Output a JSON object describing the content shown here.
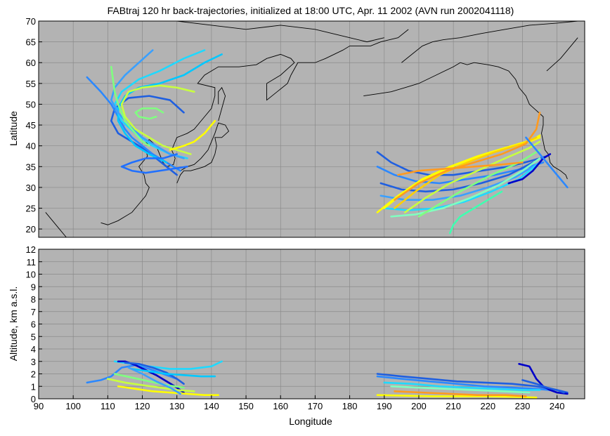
{
  "chart_data": [
    {
      "type": "line",
      "title": "FABtraj 120 hr back-trajectories, initialized at 18:00 UTC, Apr. 11 2002 (AVN run 2002041118)",
      "xlabel": "",
      "ylabel": "Latitude",
      "xlim": [
        90,
        248
      ],
      "ylim": [
        18,
        70
      ],
      "yticks": [
        "20",
        "25",
        "30",
        "35",
        "40",
        "45",
        "50",
        "55",
        "60",
        "65",
        "70"
      ],
      "grid": true,
      "background": "#b3b3b3",
      "series": [
        {
          "color": "#1f5fe0",
          "x": [
            132,
            128,
            122,
            116,
            112,
            111,
            113,
            117,
            121,
            124,
            127,
            130
          ],
          "y": [
            48,
            51,
            52,
            51.5,
            49,
            46,
            43,
            41,
            39,
            37,
            35,
            33
          ]
        },
        {
          "color": "#2b88ff",
          "x": [
            104,
            108,
            111,
            113,
            115,
            117,
            120,
            123,
            125,
            128,
            131
          ],
          "y": [
            56.5,
            53,
            50,
            47,
            44,
            42,
            40,
            38,
            37,
            35.5,
            34
          ]
        },
        {
          "color": "#00c8ff",
          "x": [
            143,
            138,
            132,
            125,
            119,
            115,
            113,
            113,
            115,
            118,
            122,
            127
          ],
          "y": [
            62,
            60,
            57,
            55,
            54,
            52,
            49,
            46,
            43,
            40,
            38,
            36
          ]
        },
        {
          "color": "#1fd9ff",
          "x": [
            138,
            132,
            125,
            119,
            114,
            112,
            114,
            118,
            123,
            128,
            133
          ],
          "y": [
            63,
            61,
            58,
            56,
            53,
            50,
            46,
            43,
            40,
            38,
            37
          ]
        },
        {
          "color": "#3aa0ff",
          "x": [
            123,
            119,
            115,
            112,
            111,
            113,
            116,
            120,
            124,
            128,
            132
          ],
          "y": [
            63,
            60,
            57,
            54,
            51,
            48,
            45,
            42,
            40,
            38,
            37
          ]
        },
        {
          "color": "#80ff80",
          "x": [
            111,
            111.5,
            112,
            113,
            115,
            118,
            120,
            122
          ],
          "y": [
            59,
            56,
            53,
            50,
            46,
            43,
            41,
            40
          ]
        },
        {
          "color": "#c8ff40",
          "x": [
            135,
            130,
            125,
            120,
            116,
            114,
            115,
            118,
            122,
            126,
            130,
            134
          ],
          "y": [
            53,
            54,
            54.5,
            54,
            53,
            50,
            47,
            44,
            42,
            40,
            39,
            38
          ]
        },
        {
          "color": "#ffff00",
          "x": [
            141,
            138,
            135,
            132,
            130,
            128
          ],
          "y": [
            46,
            43,
            41,
            40,
            39.5,
            39
          ]
        },
        {
          "color": "#80ff80",
          "x": [
            126,
            124,
            120,
            118,
            119,
            122,
            124
          ],
          "y": [
            48,
            49,
            49,
            48,
            47,
            46.5,
            47
          ]
        },
        {
          "color": "#2070ff",
          "x": [
            130,
            126,
            121,
            117,
            114,
            117,
            121,
            125,
            129,
            133
          ],
          "y": [
            38,
            37,
            37,
            36,
            35,
            34,
            33.5,
            34,
            34.5,
            35
          ]
        },
        {
          "color": "#1f5fe0",
          "x": [
            188,
            192,
            197,
            203,
            210,
            218,
            226,
            233,
            237
          ],
          "y": [
            38.5,
            36,
            34,
            33,
            33,
            34,
            35,
            36.5,
            37.5
          ]
        },
        {
          "color": "#2b88ff",
          "x": [
            188,
            193,
            199,
            206,
            214,
            222,
            230,
            236
          ],
          "y": [
            35,
            33,
            31.5,
            31,
            32,
            33,
            34.5,
            36
          ]
        },
        {
          "color": "#1f5fe0",
          "x": [
            189,
            195,
            202,
            210,
            218,
            226,
            233
          ],
          "y": [
            31,
            29.5,
            29,
            29.5,
            31,
            33,
            36
          ]
        },
        {
          "color": "#3aa0ff",
          "x": [
            189,
            196,
            204,
            212,
            220,
            228,
            235
          ],
          "y": [
            28,
            27,
            27,
            28,
            30,
            32.5,
            36
          ]
        },
        {
          "color": "#1fd9ff",
          "x": [
            190,
            197,
            205,
            213,
            221,
            229,
            235
          ],
          "y": [
            25,
            24.5,
            25,
            26.5,
            29,
            32,
            36
          ]
        },
        {
          "color": "#80ffc0",
          "x": [
            192,
            199,
            207,
            215,
            223,
            230,
            235
          ],
          "y": [
            23,
            23.5,
            25,
            27.5,
            30.5,
            34,
            37
          ]
        },
        {
          "color": "#ffff00",
          "x": [
            188,
            194,
            201,
            209,
            217,
            225,
            232,
            235
          ],
          "y": [
            24,
            28,
            32,
            35,
            37.5,
            39.5,
            41,
            42
          ]
        },
        {
          "color": "#ffff00",
          "x": [
            190,
            196,
            203,
            211,
            219,
            227,
            233,
            235
          ],
          "y": [
            25,
            29,
            32.5,
            35.5,
            38,
            40,
            41.5,
            42.5
          ]
        },
        {
          "color": "#ffd000",
          "x": [
            193,
            199,
            206,
            214,
            222,
            230,
            234
          ],
          "y": [
            25,
            29,
            33,
            36,
            38.5,
            40.5,
            42
          ]
        },
        {
          "color": "#c8ff40",
          "x": [
            196,
            202,
            209,
            217,
            225,
            232,
            235
          ],
          "y": [
            24,
            27.5,
            31,
            34,
            37,
            39.5,
            41
          ]
        },
        {
          "color": "#80ff80",
          "x": [
            200,
            206,
            213,
            221,
            229,
            235
          ],
          "y": [
            23,
            26,
            29.5,
            33,
            36,
            39
          ]
        },
        {
          "color": "#ff9a20",
          "x": [
            193,
            200,
            208,
            216,
            224,
            231,
            234,
            235
          ],
          "y": [
            27,
            31,
            34,
            36,
            38,
            40.5,
            44,
            48
          ]
        },
        {
          "color": "#ff9a20",
          "x": [
            194,
            200,
            208,
            216,
            224,
            230
          ],
          "y": [
            33,
            34,
            34.5,
            35,
            35.5,
            36
          ]
        },
        {
          "color": "#0000c8",
          "x": [
            226,
            230,
            233,
            235,
            236,
            238
          ],
          "y": [
            31,
            32,
            34,
            36,
            37,
            38
          ]
        },
        {
          "color": "#2b88ff",
          "x": [
            243,
            240,
            238,
            236,
            234,
            231
          ],
          "y": [
            30,
            33,
            35,
            37,
            39,
            42
          ]
        },
        {
          "color": "#40ffb0",
          "x": [
            209,
            210,
            212,
            216,
            220,
            224
          ],
          "y": [
            19,
            21,
            23,
            25,
            27,
            29
          ]
        }
      ]
    },
    {
      "type": "line",
      "title": "",
      "xlabel": "Longitude",
      "ylabel": "Altitude, km a.s.l.",
      "xlim": [
        90,
        248
      ],
      "ylim": [
        0,
        12
      ],
      "xticks": [
        "90",
        "100",
        "110",
        "120",
        "130",
        "140",
        "150",
        "160",
        "170",
        "180",
        "190",
        "200",
        "210",
        "220",
        "230",
        "240"
      ],
      "yticks": [
        "0",
        "1",
        "2",
        "3",
        "4",
        "5",
        "6",
        "7",
        "8",
        "9",
        "10",
        "11",
        "12"
      ],
      "grid": true,
      "background": "#b3b3b3",
      "series": [
        {
          "color": "#1fd9ff",
          "x": [
            112,
            117,
            122,
            128,
            134,
            140,
            143
          ],
          "y": [
            3,
            2.8,
            2.6,
            2.4,
            2.4,
            2.6,
            3
          ]
        },
        {
          "color": "#2b88ff",
          "x": [
            104,
            108,
            111,
            114,
            118,
            122,
            126,
            130
          ],
          "y": [
            1.3,
            1.5,
            1.8,
            2.5,
            2.7,
            2.4,
            2,
            1.6
          ]
        },
        {
          "color": "#0000c8",
          "x": [
            113,
            115,
            118,
            121,
            124,
            127,
            130,
            132
          ],
          "y": [
            3,
            3,
            2.7,
            2.3,
            1.9,
            1.4,
            0.9,
            0.5
          ]
        },
        {
          "color": "#1f5fe0",
          "x": [
            115,
            119,
            123,
            127,
            130,
            132
          ],
          "y": [
            2.9,
            2.8,
            2.5,
            2.1,
            1.6,
            1.2
          ]
        },
        {
          "color": "#00c8ff",
          "x": [
            117,
            122,
            127,
            132,
            137,
            141
          ],
          "y": [
            2.4,
            2.2,
            2,
            1.9,
            1.8,
            1.8
          ]
        },
        {
          "color": "#ffff00",
          "x": [
            113,
            118,
            123,
            128,
            133,
            138,
            142
          ],
          "y": [
            1,
            0.8,
            0.6,
            0.5,
            0.4,
            0.3,
            0.3
          ]
        },
        {
          "color": "#c8ff40",
          "x": [
            110,
            115,
            120,
            125,
            130,
            135
          ],
          "y": [
            1.6,
            1.3,
            1.1,
            0.9,
            0.7,
            0.6
          ]
        },
        {
          "color": "#80ff80",
          "x": [
            112,
            117,
            122,
            127,
            132
          ],
          "y": [
            2,
            1.7,
            1.4,
            1.1,
            0.9
          ]
        },
        {
          "color": "#3aa0ff",
          "x": [
            116,
            120,
            124,
            128,
            131
          ],
          "y": [
            2.5,
            2,
            1.4,
            0.9,
            0.4
          ]
        },
        {
          "color": "#1f5fe0",
          "x": [
            188,
            195,
            203,
            211,
            219,
            227,
            234,
            240,
            243
          ],
          "y": [
            2,
            1.8,
            1.6,
            1.4,
            1.3,
            1.2,
            1,
            0.7,
            0.5
          ]
        },
        {
          "color": "#2b88ff",
          "x": [
            188,
            195,
            203,
            211,
            219,
            227,
            234,
            238
          ],
          "y": [
            1.8,
            1.6,
            1.4,
            1.2,
            1,
            0.9,
            0.8,
            0.7
          ]
        },
        {
          "color": "#1fd9ff",
          "x": [
            190,
            198,
            206,
            214,
            222,
            230,
            235
          ],
          "y": [
            1.3,
            1.2,
            1,
            0.9,
            0.8,
            0.7,
            0.7
          ]
        },
        {
          "color": "#80ffc0",
          "x": [
            192,
            200,
            208,
            216,
            224,
            232
          ],
          "y": [
            1,
            0.9,
            0.8,
            0.7,
            0.6,
            0.5
          ]
        },
        {
          "color": "#ffff00",
          "x": [
            188,
            196,
            204,
            212,
            220,
            228,
            234
          ],
          "y": [
            0.3,
            0.25,
            0.2,
            0.2,
            0.2,
            0.15,
            0.1
          ]
        },
        {
          "color": "#ff9a20",
          "x": [
            193,
            201,
            209,
            217,
            225,
            231
          ],
          "y": [
            0.6,
            0.5,
            0.4,
            0.3,
            0.3,
            0.2
          ]
        },
        {
          "color": "#0000c8",
          "x": [
            229,
            232,
            234,
            236,
            238,
            240,
            243
          ],
          "y": [
            2.8,
            2.6,
            1.6,
            1,
            0.7,
            0.5,
            0.4
          ]
        },
        {
          "color": "#1f5fe0",
          "x": [
            230,
            234,
            237,
            240,
            242
          ],
          "y": [
            1.5,
            1.2,
            0.9,
            0.7,
            0.5
          ]
        }
      ]
    }
  ],
  "ui": {
    "title": "FABtraj 120 hr back-trajectories, initialized at 18:00 UTC, Apr. 11 2002 (AVN run 2002041118)",
    "top_ylabel": "Latitude",
    "bottom_ylabel": "Altitude, km a.s.l.",
    "xlabel": "Longitude"
  }
}
